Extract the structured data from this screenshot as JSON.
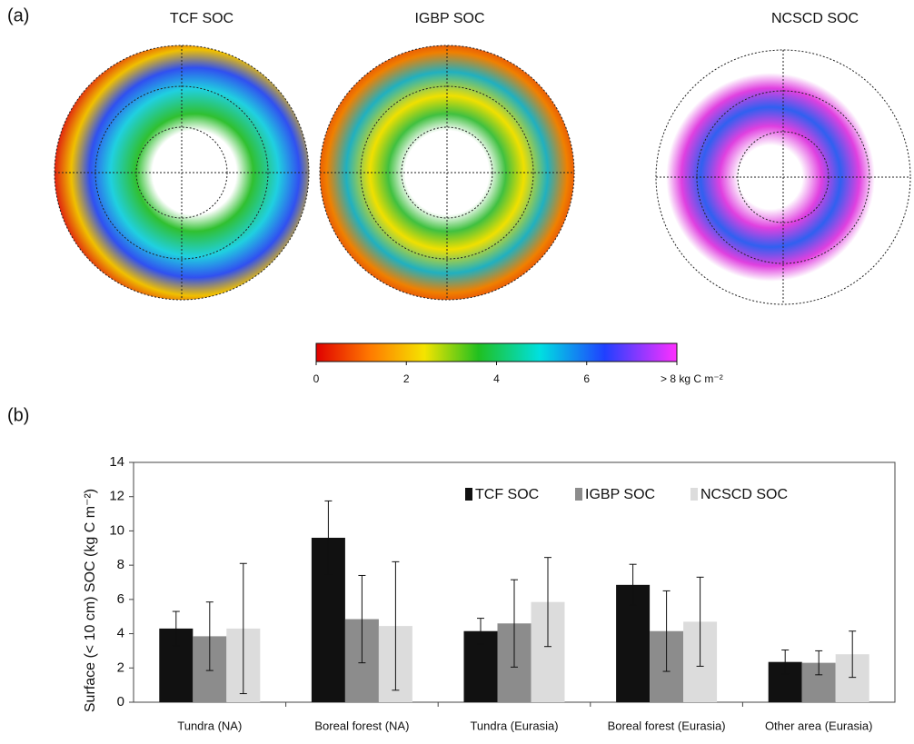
{
  "figure": {
    "panel_a_label": "(a)",
    "panel_b_label": "(b)",
    "maps": [
      {
        "title": "TCF SOC"
      },
      {
        "title": "IGBP SOC"
      },
      {
        "title": "NCSCD SOC"
      }
    ],
    "colorbar": {
      "lim": [
        0,
        8
      ],
      "ticks": [
        0,
        2,
        4,
        6,
        {
          "value": 8,
          "label": "> 8 kg C m⁻²"
        }
      ]
    }
  },
  "chart_data": {
    "type": "bar",
    "y_label": "Surface (< 10 cm) SOC (kg C m⁻²)",
    "categories": [
      "Tundra (NA)",
      "Boreal forest (NA)",
      "Tundra (Eurasia)",
      "Boreal forest (Eurasia)",
      "Other area (Eurasia)"
    ],
    "series": [
      {
        "name": "TCF SOC",
        "color": "#111111",
        "values": [
          4.3,
          9.6,
          4.15,
          6.85,
          2.35
        ],
        "errors": [
          1.0,
          2.15,
          0.75,
          1.2,
          0.7
        ]
      },
      {
        "name": "IGBP SOC",
        "color": "#8c8c8c",
        "values": [
          3.85,
          4.85,
          4.6,
          4.15,
          2.3
        ],
        "errors": [
          2.0,
          2.55,
          2.55,
          2.35,
          0.7
        ]
      },
      {
        "name": "NCSCD SOC",
        "color": "#dcdcdc",
        "values": [
          4.3,
          4.45,
          5.85,
          4.7,
          2.8
        ],
        "errors": [
          3.8,
          3.75,
          2.6,
          2.6,
          1.35
        ]
      }
    ],
    "ylim": [
      0,
      14
    ],
    "yticks": [
      0,
      2,
      4,
      6,
      8,
      10,
      12,
      14
    ]
  }
}
